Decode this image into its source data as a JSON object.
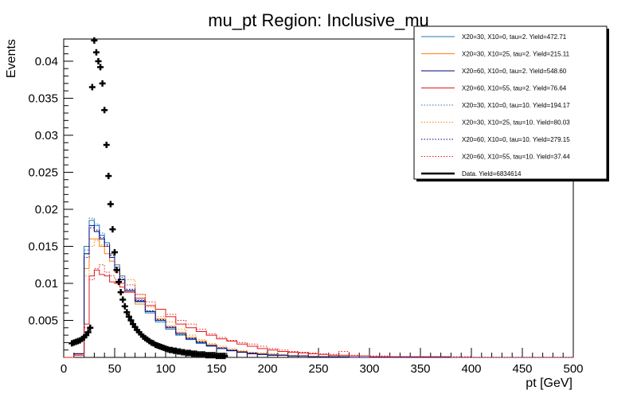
{
  "chart_data": {
    "type": "line",
    "title": "mu_pt Region: Inclusive_mu",
    "xlabel": "pt [GeV]",
    "ylabel": "Events",
    "xlim": [
      0,
      500
    ],
    "ylim": [
      0,
      0.043
    ],
    "x_ticks": [
      0,
      50,
      100,
      150,
      200,
      250,
      300,
      350,
      400,
      450,
      500
    ],
    "y_ticks": [
      0.005,
      0.01,
      0.015,
      0.02,
      0.025,
      0.03,
      0.035,
      0.04
    ],
    "y_tick_labels": [
      "0.005",
      "0.01",
      "0.015",
      "0.02",
      "0.025",
      "0.03",
      "0.035",
      "0.04"
    ],
    "grid": false,
    "legend_position": "top-right",
    "bin_edges": [
      0,
      10,
      20,
      25,
      30,
      35,
      40,
      45,
      50,
      55,
      60,
      70,
      80,
      90,
      100,
      110,
      120,
      130,
      140,
      150,
      160,
      170,
      180,
      190,
      200,
      210,
      220,
      230,
      240,
      250,
      260,
      270,
      280,
      290,
      300,
      320,
      340,
      360,
      380,
      400,
      450,
      500
    ],
    "series": [
      {
        "name": "X20=30, X10=0, tau=2. Yield=472.71",
        "color": "#1f77b4",
        "style": "solid",
        "values": [
          0,
          0.0005,
          0.015,
          0.0185,
          0.0178,
          0.0165,
          0.0155,
          0.014,
          0.0125,
          0.011,
          0.009,
          0.0075,
          0.006,
          0.0048,
          0.0038,
          0.003,
          0.0024,
          0.0019,
          0.0015,
          0.0012,
          0.0009,
          0.0007,
          0.0005,
          0.0004,
          0.0003,
          0.0003,
          0.0002,
          0.0002,
          0.0001,
          0.0001,
          0.0001,
          0.0001,
          0,
          0,
          0,
          0,
          0,
          0,
          0,
          0,
          0
        ]
      },
      {
        "name": "X20=30, X10=25, tau=2. Yield=215.11",
        "color": "#ff7f0e",
        "style": "solid",
        "values": [
          0,
          0.0005,
          0.012,
          0.016,
          0.016,
          0.015,
          0.014,
          0.013,
          0.0115,
          0.01,
          0.0088,
          0.0072,
          0.0062,
          0.0052,
          0.0042,
          0.0034,
          0.0027,
          0.0022,
          0.0017,
          0.0013,
          0.001,
          0.0008,
          0.0006,
          0.0005,
          0.0004,
          0.0003,
          0.0002,
          0.0002,
          0.0001,
          0.0001,
          0.0001,
          0.0001,
          0,
          0,
          0,
          0,
          0,
          0,
          0,
          0,
          0
        ]
      },
      {
        "name": "X20=60, X10=0, tau=2. Yield=548.60",
        "color": "#00007f",
        "style": "solid",
        "values": [
          0,
          0.0005,
          0.014,
          0.0178,
          0.017,
          0.016,
          0.015,
          0.0135,
          0.0118,
          0.0105,
          0.009,
          0.0076,
          0.0062,
          0.005,
          0.004,
          0.0032,
          0.0025,
          0.002,
          0.0016,
          0.0012,
          0.0009,
          0.0007,
          0.0005,
          0.0004,
          0.0003,
          0.0003,
          0.0002,
          0.0002,
          0.0001,
          0.0001,
          0.0001,
          0.0001,
          0,
          0,
          0,
          0,
          0,
          0,
          0,
          0,
          0
        ]
      },
      {
        "name": "X20=60, X10=55, tau=2. Yield=76.64",
        "color": "#e41a1c",
        "style": "solid",
        "values": [
          0,
          0.0003,
          0.0045,
          0.011,
          0.0118,
          0.0112,
          0.011,
          0.0102,
          0.01,
          0.0095,
          0.0088,
          0.008,
          0.007,
          0.0065,
          0.0055,
          0.0045,
          0.004,
          0.0035,
          0.003,
          0.0025,
          0.0022,
          0.0018,
          0.0015,
          0.0012,
          0.001,
          0.0008,
          0.0007,
          0.0006,
          0.0005,
          0.0004,
          0.0003,
          0.0003,
          0.0002,
          0.0002,
          0.0001,
          0.0001,
          0.0001,
          0.0001,
          0,
          0,
          0
        ]
      },
      {
        "name": "X20=30, X10=0, tau=10. Yield=194.17",
        "color": "#1f77b4",
        "style": "dotted",
        "values": [
          0,
          0.0005,
          0.0145,
          0.0188,
          0.018,
          0.0168,
          0.0152,
          0.0138,
          0.0122,
          0.0108,
          0.0092,
          0.0078,
          0.0062,
          0.005,
          0.004,
          0.0031,
          0.0025,
          0.002,
          0.0016,
          0.0012,
          0.001,
          0.0008,
          0.0006,
          0.0005,
          0.0004,
          0.0003,
          0.0002,
          0.0002,
          0.0001,
          0.0001,
          0.0001,
          0.0001,
          0,
          0,
          0,
          0,
          0,
          0,
          0,
          0,
          0
        ]
      },
      {
        "name": "X20=30, X10=25, tau=10. Yield=80.03",
        "color": "#ff7f0e",
        "style": "dotted",
        "values": [
          0,
          0.0004,
          0.011,
          0.015,
          0.0158,
          0.0152,
          0.015,
          0.014,
          0.0125,
          0.011,
          0.0105,
          0.0085,
          0.0068,
          0.0055,
          0.0048,
          0.0038,
          0.003,
          0.0024,
          0.0019,
          0.0015,
          0.0012,
          0.0009,
          0.0007,
          0.0006,
          0.0005,
          0.0004,
          0.0003,
          0.0002,
          0.0002,
          0.0001,
          0.0001,
          0.0001,
          0,
          0,
          0,
          0,
          0,
          0,
          0,
          0,
          0
        ]
      },
      {
        "name": "X20=60, X10=0, tau=10. Yield=279.15",
        "color": "#00007f",
        "style": "dotted",
        "values": [
          0,
          0.0005,
          0.0135,
          0.0175,
          0.0172,
          0.0162,
          0.0152,
          0.0138,
          0.012,
          0.0106,
          0.0092,
          0.0077,
          0.0063,
          0.0051,
          0.0041,
          0.0032,
          0.0026,
          0.0021,
          0.0016,
          0.0013,
          0.001,
          0.0007,
          0.0006,
          0.0004,
          0.0003,
          0.0003,
          0.0002,
          0.0002,
          0.0001,
          0.0001,
          0.0001,
          0.0001,
          0,
          0,
          0,
          0,
          0,
          0,
          0,
          0,
          0
        ]
      },
      {
        "name": "X20=60, X10=55, tau=10. Yield=37.44",
        "color": "#e41a1c",
        "style": "dotted",
        "values": [
          0,
          0.0003,
          0.004,
          0.0105,
          0.012,
          0.0125,
          0.0115,
          0.011,
          0.0105,
          0.01,
          0.0098,
          0.0085,
          0.0075,
          0.0065,
          0.0058,
          0.005,
          0.0045,
          0.0038,
          0.0032,
          0.0027,
          0.0023,
          0.002,
          0.0018,
          0.0015,
          0.0012,
          0.001,
          0.0008,
          0.0007,
          0.0006,
          0.0005,
          0.0004,
          0.0008,
          0.0003,
          0.0002,
          0.0002,
          0.0001,
          0.0001,
          0.0001,
          0.0001,
          0,
          0
        ]
      }
    ],
    "data": {
      "name": "Data. Yield=6834614",
      "color": "#000000",
      "x": [
        8,
        10,
        12,
        14,
        16,
        18,
        20,
        22,
        24,
        26,
        28,
        30,
        32,
        34,
        36,
        38,
        40,
        42,
        44,
        46,
        48,
        50,
        52,
        54,
        56,
        58,
        60,
        62,
        64,
        66,
        68,
        70,
        72,
        74,
        76,
        78,
        80,
        82,
        84,
        86,
        88,
        90,
        92,
        94,
        96,
        98,
        100,
        102,
        104,
        106,
        108,
        110,
        112,
        114,
        116,
        118,
        120,
        122,
        124,
        126,
        128,
        130,
        132,
        134,
        136,
        138,
        140,
        142,
        144,
        146,
        148,
        150,
        152,
        154,
        156,
        158
      ],
      "y": [
        0.0019,
        0.002,
        0.0021,
        0.0022,
        0.0023,
        0.0025,
        0.0027,
        0.003,
        0.0034,
        0.004,
        0.0365,
        0.0428,
        0.0412,
        0.04,
        0.0392,
        0.037,
        0.0334,
        0.0287,
        0.0245,
        0.0207,
        0.0173,
        0.0142,
        0.0118,
        0.0102,
        0.0088,
        0.0078,
        0.0069,
        0.0061,
        0.0055,
        0.005,
        0.0045,
        0.0041,
        0.0037,
        0.0034,
        0.0031,
        0.0028,
        0.0026,
        0.0024,
        0.0022,
        0.002,
        0.0019,
        0.0017,
        0.0016,
        0.0015,
        0.0014,
        0.0013,
        0.0012,
        0.0011,
        0.001,
        0.001,
        0.0009,
        0.0009,
        0.0008,
        0.0008,
        0.0007,
        0.0007,
        0.0006,
        0.0006,
        0.0006,
        0.0005,
        0.0005,
        0.0005,
        0.0004,
        0.0004,
        0.0004,
        0.0004,
        0.0003,
        0.0003,
        0.0003,
        0.0003,
        0.0003,
        0.0002,
        0.0002,
        0.0002,
        0.0002,
        0.0002
      ]
    }
  }
}
